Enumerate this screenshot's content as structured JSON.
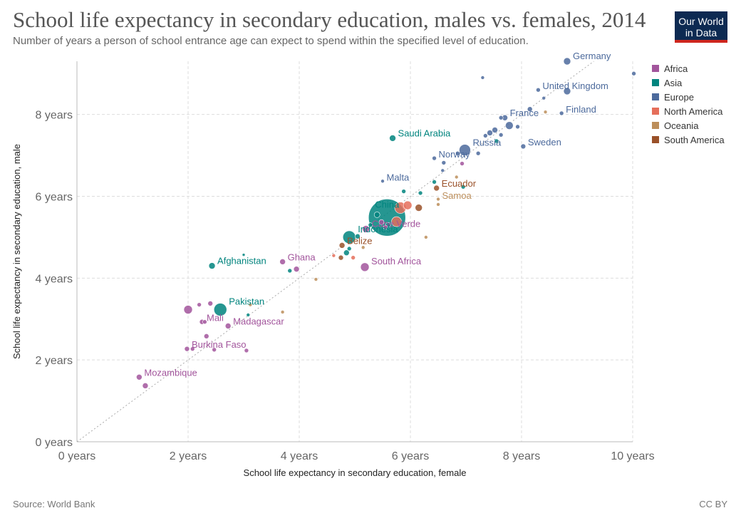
{
  "header": {
    "title": "School life expectancy in secondary education, males vs. females, 2014",
    "subtitle": "Number of years a person of school entrance age can expect to spend within the specified level of education.",
    "logo_line1": "Our World",
    "logo_line2": "in Data"
  },
  "footer": {
    "source": "Source: World Bank",
    "license": "CC BY"
  },
  "colors": {
    "Africa": "#a2559c",
    "Asia": "#00847e",
    "Europe": "#4c6a9c",
    "North America": "#e56e5a",
    "Oceania": "#bc8e5a",
    "South America": "#9a5129"
  },
  "chart_data": {
    "type": "scatter",
    "xlabel": "School life expectancy in secondary education, female",
    "ylabel": "School life expectancy in secondary education, male",
    "xlim": [
      0,
      10
    ],
    "ylim": [
      0,
      9.3
    ],
    "xticks": [
      0,
      2,
      4,
      6,
      8,
      10
    ],
    "yticks": [
      0,
      2,
      4,
      6,
      8
    ],
    "xtick_labels": [
      "0 years",
      "2 years",
      "4 years",
      "6 years",
      "8 years",
      "10 years"
    ],
    "ytick_labels": [
      "0 years",
      "2 years",
      "4 years",
      "6 years",
      "8 years"
    ],
    "grid": true,
    "legend_position": "right",
    "legend": [
      "Africa",
      "Asia",
      "Europe",
      "North America",
      "Oceania",
      "South America"
    ],
    "points": [
      {
        "x": 8.82,
        "y": 9.3,
        "group": "Europe",
        "size": 5,
        "label": "Germany"
      },
      {
        "x": 10.02,
        "y": 9.0,
        "group": "Europe",
        "size": 3
      },
      {
        "x": 7.3,
        "y": 8.9,
        "group": "Europe",
        "size": 2.5
      },
      {
        "x": 8.3,
        "y": 8.6,
        "group": "Europe",
        "size": 3,
        "label": "United Kingdom"
      },
      {
        "x": 8.82,
        "y": 8.57,
        "group": "Europe",
        "size": 5
      },
      {
        "x": 8.4,
        "y": 8.4,
        "group": "Europe",
        "size": 2.5
      },
      {
        "x": 8.15,
        "y": 8.13,
        "group": "Europe",
        "size": 3.5
      },
      {
        "x": 8.72,
        "y": 8.03,
        "group": "Europe",
        "size": 3,
        "label": "Finland"
      },
      {
        "x": 8.43,
        "y": 8.06,
        "group": "Oceania",
        "size": 2.5
      },
      {
        "x": 7.7,
        "y": 7.92,
        "group": "Europe",
        "size": 4,
        "label": "France"
      },
      {
        "x": 7.63,
        "y": 7.92,
        "group": "Europe",
        "size": 3
      },
      {
        "x": 7.78,
        "y": 7.73,
        "group": "Europe",
        "size": 5.5
      },
      {
        "x": 7.93,
        "y": 7.7,
        "group": "Europe",
        "size": 3
      },
      {
        "x": 7.52,
        "y": 7.62,
        "group": "Europe",
        "size": 4
      },
      {
        "x": 7.43,
        "y": 7.55,
        "group": "Europe",
        "size": 4
      },
      {
        "x": 7.35,
        "y": 7.48,
        "group": "Europe",
        "size": 3
      },
      {
        "x": 7.55,
        "y": 7.35,
        "group": "Asia",
        "size": 3
      },
      {
        "x": 7.63,
        "y": 7.5,
        "group": "Europe",
        "size": 3
      },
      {
        "x": 8.03,
        "y": 7.22,
        "group": "Europe",
        "size": 3.5,
        "label": "Sweden"
      },
      {
        "x": 6.98,
        "y": 7.13,
        "group": "Europe",
        "size": 8,
        "label": "Russia"
      },
      {
        "x": 6.85,
        "y": 7.05,
        "group": "Europe",
        "size": 3
      },
      {
        "x": 7.22,
        "y": 7.05,
        "group": "Europe",
        "size": 3
      },
      {
        "x": 5.68,
        "y": 7.42,
        "group": "Asia",
        "size": 4.5,
        "label": "Saudi Arabia"
      },
      {
        "x": 6.43,
        "y": 6.93,
        "group": "Europe",
        "size": 3,
        "label": "Norway"
      },
      {
        "x": 6.6,
        "y": 6.82,
        "group": "Europe",
        "size": 3
      },
      {
        "x": 6.93,
        "y": 6.8,
        "group": "Africa",
        "size": 3
      },
      {
        "x": 6.58,
        "y": 6.63,
        "group": "Europe",
        "size": 2.5
      },
      {
        "x": 6.83,
        "y": 6.47,
        "group": "Oceania",
        "size": 2.5
      },
      {
        "x": 5.5,
        "y": 6.37,
        "group": "Europe",
        "size": 2.5,
        "label": "Malta"
      },
      {
        "x": 6.43,
        "y": 6.35,
        "group": "Asia",
        "size": 3
      },
      {
        "x": 6.95,
        "y": 6.23,
        "group": "Asia",
        "size": 3
      },
      {
        "x": 6.47,
        "y": 6.2,
        "group": "South America",
        "size": 4,
        "label": "Ecuador"
      },
      {
        "x": 5.88,
        "y": 6.12,
        "group": "Asia",
        "size": 3
      },
      {
        "x": 6.18,
        "y": 6.08,
        "group": "Asia",
        "size": 3
      },
      {
        "x": 6.5,
        "y": 5.93,
        "group": "Oceania",
        "size": 2.5,
        "label": "Samoa"
      },
      {
        "x": 6.5,
        "y": 5.8,
        "group": "Oceania",
        "size": 2.5
      },
      {
        "x": 5.82,
        "y": 5.72,
        "group": "North America",
        "size": 8
      },
      {
        "x": 5.95,
        "y": 5.78,
        "group": "North America",
        "size": 6
      },
      {
        "x": 6.15,
        "y": 5.72,
        "group": "South America",
        "size": 5
      },
      {
        "x": 5.58,
        "y": 5.48,
        "group": "Asia",
        "size": 26,
        "label": "China"
      },
      {
        "x": 5.75,
        "y": 5.38,
        "group": "North America",
        "size": 7
      },
      {
        "x": 5.4,
        "y": 5.55,
        "group": "Asia",
        "size": 4
      },
      {
        "x": 5.6,
        "y": 5.3,
        "group": "Asia",
        "size": 3.5
      },
      {
        "x": 5.48,
        "y": 5.37,
        "group": "Africa",
        "size": 3.5
      },
      {
        "x": 5.55,
        "y": 5.24,
        "group": "Africa",
        "size": 3
      },
      {
        "x": 5.2,
        "y": 5.2,
        "group": "Africa",
        "size": 5,
        "label": "Cape Verde"
      },
      {
        "x": 5.28,
        "y": 5.3,
        "group": "Asia",
        "size": 3
      },
      {
        "x": 4.9,
        "y": 5.0,
        "group": "Asia",
        "size": 9,
        "label": "Indonesia"
      },
      {
        "x": 5.05,
        "y": 5.02,
        "group": "Asia",
        "size": 3.5
      },
      {
        "x": 6.28,
        "y": 5.0,
        "group": "Oceania",
        "size": 2.5
      },
      {
        "x": 4.77,
        "y": 4.8,
        "group": "South America",
        "size": 4,
        "label": "Belize"
      },
      {
        "x": 5.15,
        "y": 4.75,
        "group": "Oceania",
        "size": 2.5
      },
      {
        "x": 4.97,
        "y": 4.5,
        "group": "North America",
        "size": 3
      },
      {
        "x": 4.85,
        "y": 4.62,
        "group": "Asia",
        "size": 4
      },
      {
        "x": 4.9,
        "y": 4.72,
        "group": "Asia",
        "size": 3
      },
      {
        "x": 4.75,
        "y": 4.5,
        "group": "South America",
        "size": 3.5
      },
      {
        "x": 4.62,
        "y": 4.55,
        "group": "North America",
        "size": 2.5
      },
      {
        "x": 3.0,
        "y": 4.57,
        "group": "Asia",
        "size": 2
      },
      {
        "x": 5.18,
        "y": 4.27,
        "group": "Africa",
        "size": 6,
        "label": "South Africa"
      },
      {
        "x": 2.43,
        "y": 4.3,
        "group": "Asia",
        "size": 4.5,
        "label": "Afghanistan"
      },
      {
        "x": 3.7,
        "y": 4.4,
        "group": "Africa",
        "size": 4,
        "label": "Ghana"
      },
      {
        "x": 3.95,
        "y": 4.22,
        "group": "Africa",
        "size": 4
      },
      {
        "x": 3.83,
        "y": 4.18,
        "group": "Asia",
        "size": 3
      },
      {
        "x": 4.3,
        "y": 3.97,
        "group": "Oceania",
        "size": 2.5
      },
      {
        "x": 2.58,
        "y": 3.23,
        "group": "Asia",
        "size": 9,
        "label": "Pakistan"
      },
      {
        "x": 3.12,
        "y": 3.35,
        "group": "Oceania",
        "size": 2.5
      },
      {
        "x": 3.08,
        "y": 3.1,
        "group": "Asia",
        "size": 2.5
      },
      {
        "x": 3.7,
        "y": 3.17,
        "group": "Oceania",
        "size": 2.5
      },
      {
        "x": 2.0,
        "y": 3.23,
        "group": "Africa",
        "size": 6
      },
      {
        "x": 2.2,
        "y": 3.35,
        "group": "Africa",
        "size": 3
      },
      {
        "x": 2.4,
        "y": 3.38,
        "group": "Africa",
        "size": 3.5
      },
      {
        "x": 2.25,
        "y": 2.93,
        "group": "Africa",
        "size": 3.5,
        "label": "Mali"
      },
      {
        "x": 2.3,
        "y": 2.93,
        "group": "Africa",
        "size": 3
      },
      {
        "x": 2.72,
        "y": 2.83,
        "group": "Africa",
        "size": 4,
        "label": "Madagascar"
      },
      {
        "x": 2.33,
        "y": 2.58,
        "group": "Africa",
        "size": 3.5
      },
      {
        "x": 1.98,
        "y": 2.27,
        "group": "Africa",
        "size": 3.5,
        "label": "Burkina Faso"
      },
      {
        "x": 2.08,
        "y": 2.27,
        "group": "Africa",
        "size": 3
      },
      {
        "x": 2.47,
        "y": 2.25,
        "group": "Africa",
        "size": 3
      },
      {
        "x": 3.05,
        "y": 2.23,
        "group": "Africa",
        "size": 3
      },
      {
        "x": 1.12,
        "y": 1.58,
        "group": "Africa",
        "size": 4,
        "label": "Mozambique"
      },
      {
        "x": 1.23,
        "y": 1.37,
        "group": "Africa",
        "size": 4
      }
    ]
  }
}
